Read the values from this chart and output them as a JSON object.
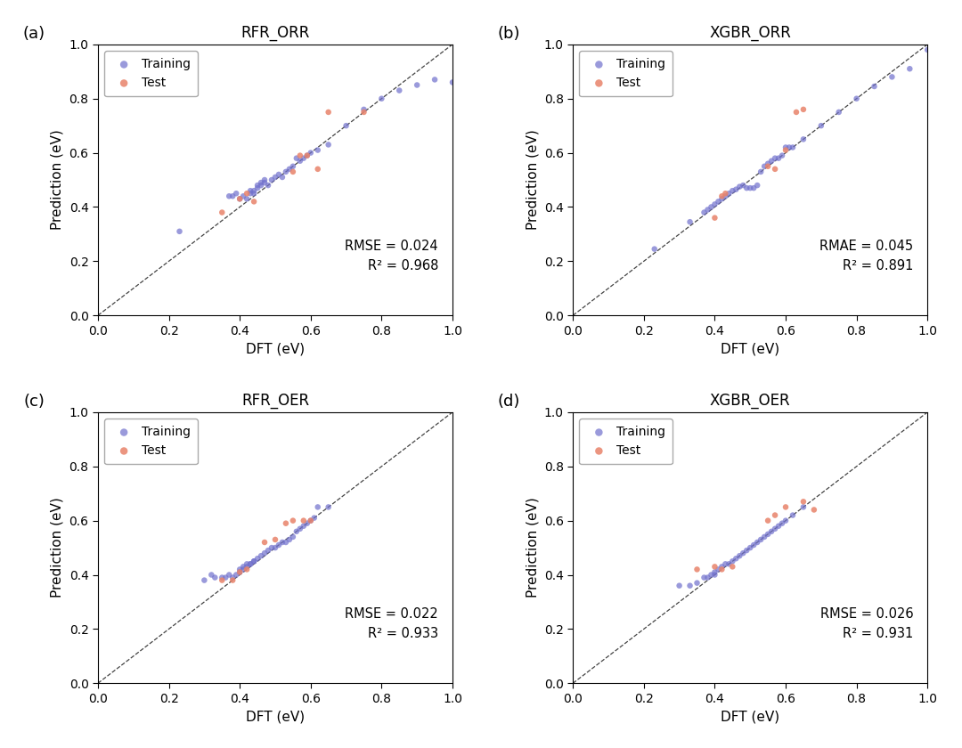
{
  "panels": [
    {
      "title": "RFR_ORR",
      "label": "(a)",
      "metric_label": "RMSE = 0.024",
      "r2_label": "R² = 0.968",
      "train_x": [
        0.23,
        0.37,
        0.38,
        0.39,
        0.4,
        0.41,
        0.42,
        0.43,
        0.43,
        0.44,
        0.44,
        0.45,
        0.45,
        0.46,
        0.46,
        0.47,
        0.47,
        0.48,
        0.49,
        0.5,
        0.51,
        0.52,
        0.53,
        0.54,
        0.55,
        0.56,
        0.57,
        0.58,
        0.59,
        0.6,
        0.62,
        0.65,
        0.7,
        0.75,
        0.8,
        0.85,
        0.9,
        0.95,
        1.0
      ],
      "train_y": [
        0.31,
        0.44,
        0.44,
        0.45,
        0.43,
        0.44,
        0.43,
        0.45,
        0.46,
        0.45,
        0.46,
        0.47,
        0.48,
        0.48,
        0.49,
        0.49,
        0.5,
        0.48,
        0.5,
        0.51,
        0.52,
        0.51,
        0.53,
        0.54,
        0.55,
        0.58,
        0.57,
        0.58,
        0.59,
        0.6,
        0.61,
        0.63,
        0.7,
        0.76,
        0.8,
        0.83,
        0.85,
        0.87,
        0.86
      ],
      "test_x": [
        0.35,
        0.4,
        0.42,
        0.44,
        0.55,
        0.57,
        0.59,
        0.62,
        0.65,
        0.75
      ],
      "test_y": [
        0.38,
        0.43,
        0.45,
        0.42,
        0.53,
        0.59,
        0.59,
        0.54,
        0.75,
        0.75
      ]
    },
    {
      "title": "XGBR_ORR",
      "label": "(b)",
      "metric_label": "RMAE = 0.045",
      "r2_label": "R² = 0.891",
      "train_x": [
        0.23,
        0.33,
        0.37,
        0.38,
        0.39,
        0.4,
        0.41,
        0.42,
        0.43,
        0.44,
        0.45,
        0.46,
        0.47,
        0.48,
        0.49,
        0.5,
        0.51,
        0.52,
        0.53,
        0.54,
        0.55,
        0.56,
        0.57,
        0.58,
        0.59,
        0.6,
        0.61,
        0.62,
        0.65,
        0.7,
        0.75,
        0.8,
        0.85,
        0.9,
        0.95,
        1.0
      ],
      "train_y": [
        0.245,
        0.345,
        0.38,
        0.39,
        0.4,
        0.41,
        0.42,
        0.43,
        0.44,
        0.45,
        0.46,
        0.465,
        0.475,
        0.48,
        0.47,
        0.47,
        0.47,
        0.48,
        0.53,
        0.55,
        0.56,
        0.57,
        0.58,
        0.58,
        0.59,
        0.62,
        0.62,
        0.62,
        0.65,
        0.7,
        0.75,
        0.8,
        0.845,
        0.88,
        0.91,
        0.98
      ],
      "test_x": [
        0.4,
        0.42,
        0.43,
        0.55,
        0.57,
        0.6,
        0.63,
        0.65
      ],
      "test_y": [
        0.36,
        0.44,
        0.45,
        0.55,
        0.54,
        0.61,
        0.75,
        0.76
      ]
    },
    {
      "title": "RFR_OER",
      "label": "(c)",
      "metric_label": "RMSE = 0.022",
      "r2_label": "R² = 0.933",
      "train_x": [
        0.3,
        0.32,
        0.33,
        0.35,
        0.36,
        0.37,
        0.38,
        0.39,
        0.4,
        0.4,
        0.41,
        0.41,
        0.42,
        0.42,
        0.43,
        0.43,
        0.44,
        0.44,
        0.45,
        0.46,
        0.47,
        0.48,
        0.49,
        0.5,
        0.51,
        0.52,
        0.53,
        0.54,
        0.55,
        0.56,
        0.57,
        0.58,
        0.59,
        0.6,
        0.61,
        0.62,
        0.65
      ],
      "train_y": [
        0.38,
        0.4,
        0.39,
        0.39,
        0.39,
        0.4,
        0.39,
        0.4,
        0.41,
        0.42,
        0.42,
        0.43,
        0.43,
        0.44,
        0.44,
        0.44,
        0.45,
        0.45,
        0.46,
        0.47,
        0.48,
        0.49,
        0.5,
        0.5,
        0.51,
        0.52,
        0.52,
        0.53,
        0.54,
        0.56,
        0.57,
        0.58,
        0.59,
        0.6,
        0.61,
        0.65,
        0.65
      ],
      "test_x": [
        0.35,
        0.38,
        0.4,
        0.42,
        0.47,
        0.5,
        0.53,
        0.55,
        0.58,
        0.6
      ],
      "test_y": [
        0.38,
        0.38,
        0.41,
        0.42,
        0.52,
        0.53,
        0.59,
        0.6,
        0.6,
        0.6
      ]
    },
    {
      "title": "XGBR_OER",
      "label": "(d)",
      "metric_label": "RMSE = 0.026",
      "r2_label": "R² = 0.931",
      "train_x": [
        0.3,
        0.33,
        0.35,
        0.37,
        0.38,
        0.39,
        0.4,
        0.4,
        0.41,
        0.42,
        0.43,
        0.44,
        0.45,
        0.46,
        0.47,
        0.48,
        0.49,
        0.5,
        0.51,
        0.52,
        0.53,
        0.54,
        0.55,
        0.56,
        0.57,
        0.58,
        0.59,
        0.6,
        0.62,
        0.65
      ],
      "train_y": [
        0.36,
        0.36,
        0.37,
        0.39,
        0.39,
        0.4,
        0.4,
        0.41,
        0.42,
        0.43,
        0.44,
        0.44,
        0.45,
        0.46,
        0.47,
        0.48,
        0.49,
        0.5,
        0.51,
        0.52,
        0.53,
        0.54,
        0.55,
        0.56,
        0.57,
        0.58,
        0.59,
        0.6,
        0.62,
        0.65
      ],
      "test_x": [
        0.35,
        0.4,
        0.42,
        0.45,
        0.55,
        0.57,
        0.6,
        0.65,
        0.68
      ],
      "test_y": [
        0.42,
        0.43,
        0.42,
        0.43,
        0.6,
        0.62,
        0.65,
        0.67,
        0.64
      ]
    }
  ],
  "train_color": "#7070CC",
  "test_color": "#E8836A",
  "diag_color": "#444444",
  "xlim": [
    0.0,
    1.0
  ],
  "ylim": [
    0.0,
    1.0
  ],
  "xlabel": "DFT (eV)",
  "ylabel": "Prediction (eV)",
  "tick_vals": [
    0.0,
    0.2,
    0.4,
    0.6,
    0.8,
    1.0
  ],
  "marker_size": 22,
  "alpha_train": 0.7,
  "alpha_test": 0.85,
  "fontsize_title": 12,
  "fontsize_label": 11,
  "fontsize_tick": 10,
  "fontsize_annot": 10.5,
  "fontsize_legend": 10,
  "fontsize_panel_label": 13,
  "background_color": "#ffffff",
  "fig_width": 10.8,
  "fig_height": 8.4,
  "dpi": 100
}
